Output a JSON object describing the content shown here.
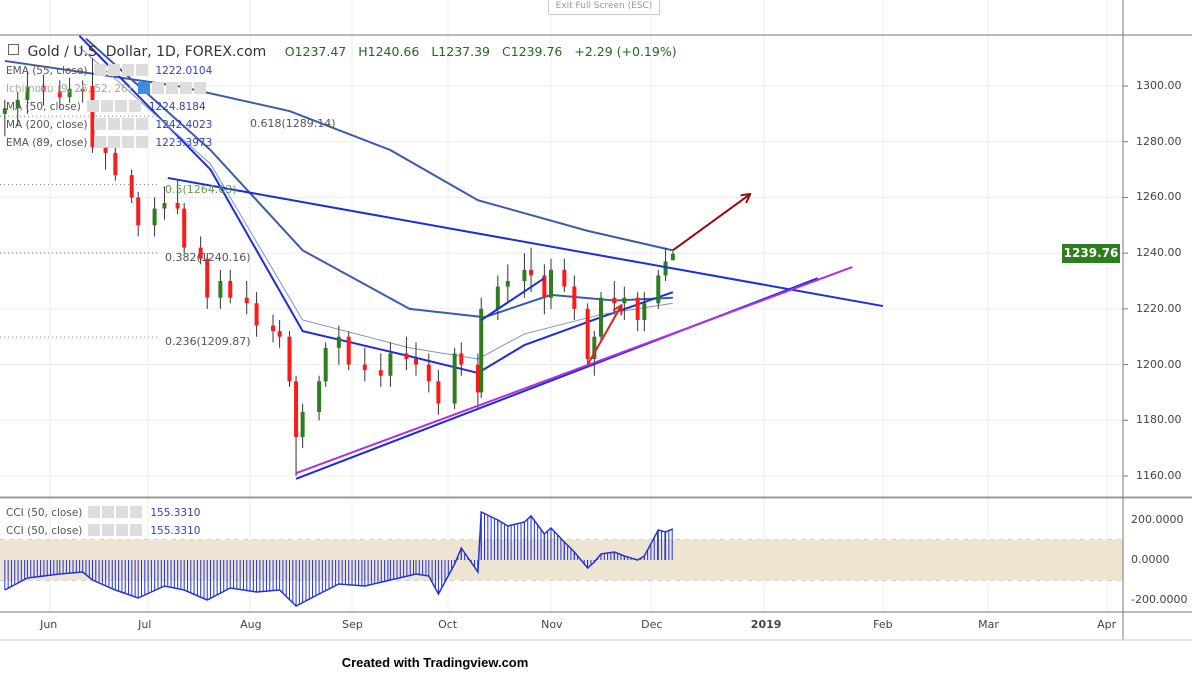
{
  "toolbar": {
    "exit_fullscreen": "Exit Full Screen (ESC)"
  },
  "header": {
    "symbol": "Gold / U.S. Dollar, 1D, FOREX.com",
    "open": "O1237.47",
    "high": "H1240.66",
    "low": "L1237.39",
    "close": "C1239.76",
    "change": "+2.29 (+0.19%)"
  },
  "legend": [
    {
      "label": "EMA (55, close)",
      "value": "1222.0104"
    },
    {
      "label": "Ichimoku (9, 26, 52, 26)",
      "value": ""
    },
    {
      "label": "MA (50, close)",
      "value": "1224.8184"
    },
    {
      "label": "MA (200, close)",
      "value": "1242.4023"
    },
    {
      "label": "EMA (89, close)",
      "value": "1223.3973"
    }
  ],
  "fib_labels": [
    {
      "ratio": "0.618(1289.14)",
      "price": 1289.14
    },
    {
      "ratio": "0.5(1264.63)",
      "price": 1264.63
    },
    {
      "ratio": "0.382(1240.16)",
      "price": 1240.16
    },
    {
      "ratio": "0.236(1209.87)",
      "price": 1209.87
    }
  ],
  "cci_legend": [
    {
      "label": "CCI (50, close)",
      "value": "155.3310"
    },
    {
      "label": "CCI (50, close)",
      "value": "155.3310"
    }
  ],
  "last_price": "1239.76",
  "colors": {
    "up": "#2e7d1e",
    "down": "#ff1a1a",
    "ma": "#3a5bb0",
    "trend": "#1a2ee0",
    "purple": "#b030e0",
    "arrow_red": "#e02020",
    "arrow_dark": "#9a0a0a",
    "cci_band": "#eee4d2"
  },
  "footer": "Created with Tradingview.com",
  "chart_data": [
    {
      "type": "candlestick",
      "title": "Gold / U.S. Dollar, 1D, FOREX.com",
      "ylim": [
        1140,
        1320
      ],
      "y_ticks": [
        "1300.00",
        "1280.00",
        "1260.00",
        "1240.00",
        "1220.00",
        "1200.00",
        "1180.00",
        "1160.00"
      ],
      "x_ticks": [
        "Jun",
        "Jul",
        "Aug",
        "Sep",
        "Oct",
        "Nov",
        "Dec",
        "2019",
        "Feb",
        "Mar",
        "Apr"
      ],
      "grid": true,
      "candles": [
        [
          "2018-05-18",
          1290,
          1295,
          1282,
          1292
        ],
        [
          "2018-05-22",
          1292,
          1298,
          1286,
          1295
        ],
        [
          "2018-05-25",
          1295,
          1305,
          1290,
          1300
        ],
        [
          "2018-05-30",
          1300,
          1304,
          1293,
          1298
        ],
        [
          "2018-06-04",
          1298,
          1302,
          1292,
          1296
        ],
        [
          "2018-06-07",
          1296,
          1303,
          1294,
          1299
        ],
        [
          "2018-06-11",
          1299,
          1302,
          1294,
          1298
        ],
        [
          "2018-06-14",
          1300,
          1310,
          1276,
          1278
        ],
        [
          "2018-06-18",
          1278,
          1282,
          1270,
          1276
        ],
        [
          "2018-06-21",
          1276,
          1278,
          1266,
          1268
        ],
        [
          "2018-06-26",
          1268,
          1270,
          1258,
          1260
        ],
        [
          "2018-06-28",
          1260,
          1262,
          1246,
          1250
        ],
        [
          "2018-07-03",
          1250,
          1260,
          1246,
          1256
        ],
        [
          "2018-07-06",
          1256,
          1264,
          1252,
          1258
        ],
        [
          "2018-07-10",
          1258,
          1266,
          1254,
          1256
        ],
        [
          "2018-07-12",
          1256,
          1258,
          1240,
          1242
        ],
        [
          "2018-07-17",
          1242,
          1246,
          1236,
          1238
        ],
        [
          "2018-07-19",
          1238,
          1240,
          1220,
          1224
        ],
        [
          "2018-07-23",
          1224,
          1234,
          1220,
          1230
        ],
        [
          "2018-07-26",
          1230,
          1234,
          1222,
          1224
        ],
        [
          "2018-07-31",
          1224,
          1230,
          1218,
          1222
        ],
        [
          "2018-08-03",
          1222,
          1226,
          1210,
          1214
        ],
        [
          "2018-08-08",
          1214,
          1218,
          1208,
          1212
        ],
        [
          "2018-08-10",
          1212,
          1216,
          1206,
          1210
        ],
        [
          "2018-08-13",
          1210,
          1212,
          1192,
          1194
        ],
        [
          "2018-08-15",
          1194,
          1196,
          1160,
          1174
        ],
        [
          "2018-08-17",
          1174,
          1186,
          1170,
          1183
        ],
        [
          "2018-08-22",
          1183,
          1196,
          1180,
          1194
        ],
        [
          "2018-08-24",
          1194,
          1208,
          1192,
          1206
        ],
        [
          "2018-08-28",
          1206,
          1214,
          1200,
          1210
        ],
        [
          "2018-08-31",
          1210,
          1212,
          1198,
          1200
        ],
        [
          "2018-09-05",
          1200,
          1206,
          1194,
          1198
        ],
        [
          "2018-09-10",
          1198,
          1204,
          1192,
          1196
        ],
        [
          "2018-09-13",
          1196,
          1208,
          1192,
          1204
        ],
        [
          "2018-09-18",
          1204,
          1210,
          1198,
          1202
        ],
        [
          "2018-09-21",
          1202,
          1208,
          1196,
          1200
        ],
        [
          "2018-09-25",
          1200,
          1204,
          1190,
          1194
        ],
        [
          "2018-09-28",
          1194,
          1198,
          1182,
          1186
        ],
        [
          "2018-10-03",
          1186,
          1206,
          1184,
          1204
        ],
        [
          "2018-10-05",
          1204,
          1208,
          1196,
          1200
        ],
        [
          "2018-10-10",
          1200,
          1204,
          1184,
          1190
        ],
        [
          "2018-10-11",
          1190,
          1224,
          1188,
          1220
        ],
        [
          "2018-10-16",
          1220,
          1232,
          1216,
          1228
        ],
        [
          "2018-10-19",
          1228,
          1236,
          1222,
          1230
        ],
        [
          "2018-10-24",
          1230,
          1240,
          1224,
          1234
        ],
        [
          "2018-10-26",
          1234,
          1242,
          1226,
          1232
        ],
        [
          "2018-10-30",
          1232,
          1236,
          1218,
          1224
        ],
        [
          "2018-11-01",
          1224,
          1238,
          1220,
          1234
        ],
        [
          "2018-11-05",
          1234,
          1238,
          1226,
          1228
        ],
        [
          "2018-11-08",
          1228,
          1232,
          1216,
          1220
        ],
        [
          "2018-11-12",
          1220,
          1222,
          1200,
          1202
        ],
        [
          "2018-11-14",
          1202,
          1212,
          1196,
          1210
        ],
        [
          "2018-11-16",
          1210,
          1226,
          1208,
          1224
        ],
        [
          "2018-11-20",
          1224,
          1230,
          1218,
          1222
        ],
        [
          "2018-11-23",
          1222,
          1228,
          1216,
          1224
        ],
        [
          "2018-11-27",
          1224,
          1226,
          1212,
          1216
        ],
        [
          "2018-11-29",
          1216,
          1226,
          1212,
          1222
        ],
        [
          "2018-12-03",
          1222,
          1234,
          1220,
          1232
        ],
        [
          "2018-12-05",
          1232,
          1242,
          1230,
          1237
        ],
        [
          "2018-12-07",
          1237.47,
          1240.66,
          1237.39,
          1239.76
        ]
      ],
      "series": [
        {
          "name": "MA (200, close)",
          "color": "#3a5bb0",
          "points": [
            [
              "2018-05-18",
              1309
            ],
            [
              "2018-07-10",
              1300
            ],
            [
              "2018-08-13",
              1291
            ],
            [
              "2018-09-13",
              1277
            ],
            [
              "2018-10-10",
              1259
            ],
            [
              "2018-11-12",
              1248
            ],
            [
              "2018-12-07",
              1241
            ]
          ]
        },
        {
          "name": "EMA (89, close)",
          "color": "#3a5bb0",
          "points": [
            [
              "2018-06-12",
              1317
            ],
            [
              "2018-07-20",
              1277
            ],
            [
              "2018-08-17",
              1241
            ],
            [
              "2018-09-19",
              1220
            ],
            [
              "2018-10-12",
              1217
            ],
            [
              "2018-11-01",
              1225
            ],
            [
              "2018-11-20",
              1223
            ],
            [
              "2018-12-07",
              1224
            ]
          ]
        },
        {
          "name": "MA (50, close)",
          "color": "#1a2ee0",
          "points": [
            [
              "2018-06-10",
              1318
            ],
            [
              "2018-07-20",
              1270
            ],
            [
              "2018-08-17",
              1212
            ],
            [
              "2018-09-19",
              1203
            ],
            [
              "2018-10-10",
              1197
            ],
            [
              "2018-10-24",
              1207
            ],
            [
              "2018-11-16",
              1217
            ],
            [
              "2018-12-07",
              1226
            ]
          ]
        },
        {
          "name": "EMA (55, close)",
          "color": "#7f93c8",
          "points": [
            [
              "2018-06-10",
              1314
            ],
            [
              "2018-07-20",
              1272
            ],
            [
              "2018-08-17",
              1216
            ],
            [
              "2018-09-19",
              1206
            ],
            [
              "2018-10-10",
              1202
            ],
            [
              "2018-10-24",
              1211
            ],
            [
              "2018-11-16",
              1218
            ],
            [
              "2018-12-07",
              1222
            ]
          ]
        }
      ],
      "drawings": [
        {
          "kind": "trendline",
          "color": "#1a2ee0",
          "from": [
            "2018-07-07",
            1267
          ],
          "to": [
            "2019-02-01",
            1221
          ]
        },
        {
          "kind": "trendline",
          "color": "#1a2ee0",
          "from": [
            "2018-08-15",
            1159
          ],
          "to": [
            "2019-01-15",
            1231
          ]
        },
        {
          "kind": "trendline",
          "color": "#b030e0",
          "from": [
            "2018-08-15",
            1161
          ],
          "to": [
            "2019-01-24",
            1235
          ]
        },
        {
          "kind": "trendline",
          "color": "#1a2ee0",
          "from": [
            "2018-10-11",
            1216
          ],
          "to": [
            "2018-10-30",
            1231
          ]
        },
        {
          "kind": "arrow",
          "color": "#e02020",
          "from": [
            "2018-11-12",
            1200
          ],
          "to": [
            "2018-11-22",
            1221
          ]
        },
        {
          "kind": "arrow",
          "color": "#9a0a0a",
          "from": [
            "2018-12-07",
            1241
          ],
          "to": [
            "2018-12-28",
            1261
          ]
        }
      ]
    },
    {
      "type": "line",
      "title": "CCI (50, close)",
      "ylim": [
        -240,
        260
      ],
      "y_ticks": [
        "200.0000",
        "0.0000",
        "-200.0000"
      ],
      "band": [
        -100,
        100
      ],
      "points": [
        [
          "2018-05-18",
          -150
        ],
        [
          "2018-05-25",
          -90
        ],
        [
          "2018-06-04",
          -70
        ],
        [
          "2018-06-11",
          -60
        ],
        [
          "2018-06-14",
          -100
        ],
        [
          "2018-06-21",
          -150
        ],
        [
          "2018-06-28",
          -190
        ],
        [
          "2018-07-06",
          -130
        ],
        [
          "2018-07-12",
          -150
        ],
        [
          "2018-07-19",
          -200
        ],
        [
          "2018-07-26",
          -140
        ],
        [
          "2018-08-03",
          -160
        ],
        [
          "2018-08-10",
          -150
        ],
        [
          "2018-08-15",
          -230
        ],
        [
          "2018-08-22",
          -170
        ],
        [
          "2018-08-28",
          -120
        ],
        [
          "2018-09-05",
          -130
        ],
        [
          "2018-09-13",
          -100
        ],
        [
          "2018-09-21",
          -70
        ],
        [
          "2018-09-25",
          -80
        ],
        [
          "2018-09-28",
          -170
        ],
        [
          "2018-10-03",
          -20
        ],
        [
          "2018-10-05",
          60
        ],
        [
          "2018-10-10",
          -60
        ],
        [
          "2018-10-11",
          240
        ],
        [
          "2018-10-16",
          200
        ],
        [
          "2018-10-19",
          170
        ],
        [
          "2018-10-24",
          190
        ],
        [
          "2018-10-26",
          220
        ],
        [
          "2018-10-30",
          130
        ],
        [
          "2018-11-01",
          160
        ],
        [
          "2018-11-05",
          90
        ],
        [
          "2018-11-08",
          40
        ],
        [
          "2018-11-12",
          -40
        ],
        [
          "2018-11-14",
          -10
        ],
        [
          "2018-11-16",
          30
        ],
        [
          "2018-11-20",
          40
        ],
        [
          "2018-11-23",
          20
        ],
        [
          "2018-11-27",
          0
        ],
        [
          "2018-11-29",
          20
        ],
        [
          "2018-12-03",
          150
        ],
        [
          "2018-12-05",
          140
        ],
        [
          "2018-12-07",
          155.331
        ]
      ]
    }
  ]
}
